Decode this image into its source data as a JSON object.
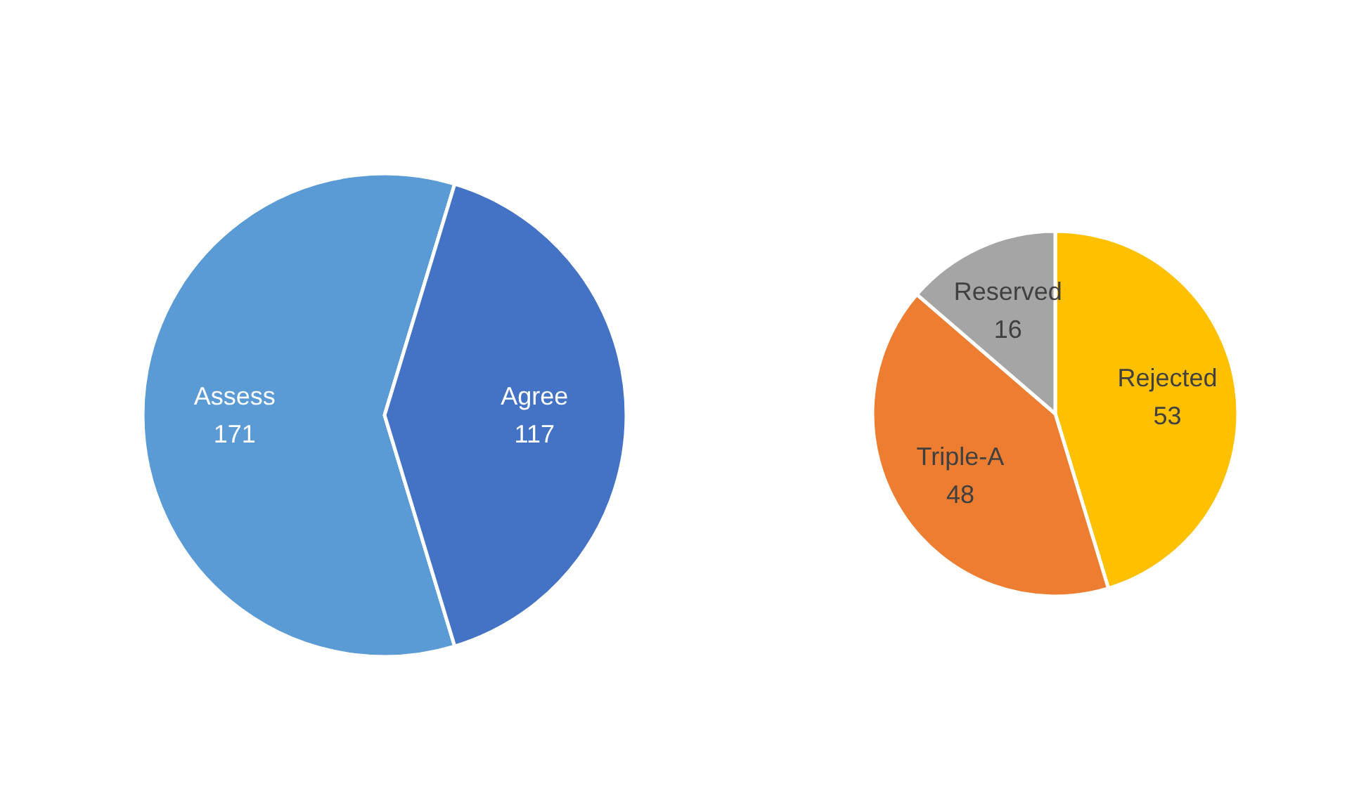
{
  "chart_data": [
    {
      "type": "pie",
      "categories": [
        "Assess",
        "Agree"
      ],
      "values": [
        171,
        117
      ],
      "colors": [
        "#5b9bd5",
        "#4472c4"
      ],
      "data_labels": true
    },
    {
      "type": "pie",
      "categories": [
        "Rejected",
        "Triple-A",
        "Reserved"
      ],
      "values": [
        53,
        48,
        16
      ],
      "colors": [
        "#ffc000",
        "#ed7d31",
        "#a5a5a5"
      ],
      "data_labels": true
    }
  ]
}
